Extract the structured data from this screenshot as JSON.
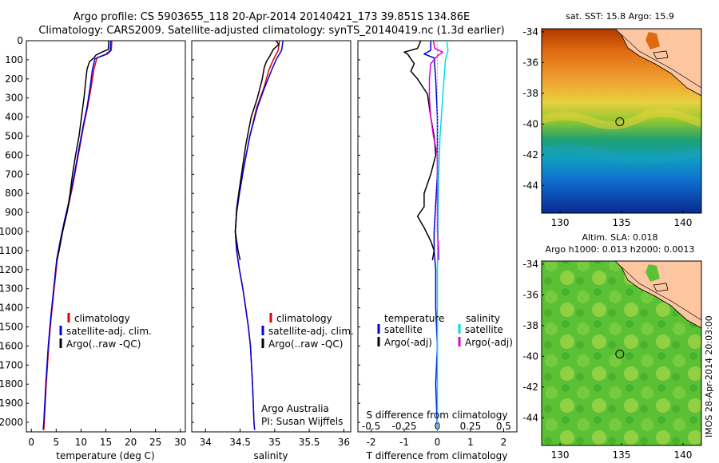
{
  "header": {
    "line1": "Argo profile: CS 5903655_118 20-Apr-2014 20140421_173 39.851S 134.86E",
    "line2": "Climatology: CARS2009. Satellite-adjusted climatology: synTS_20140419.nc (1.3d earlier)"
  },
  "colors": {
    "climatology": "#e00000",
    "satellite": "#0000dd",
    "argo": "#000000",
    "sal_satellite": "#00dddd",
    "sal_argo": "#dd00dd"
  },
  "chart_data": [
    {
      "id": "temperature",
      "type": "line",
      "xlabel": "temperature (deg C)",
      "ylabel": "",
      "xlim": [
        -1,
        31
      ],
      "ylim": [
        0,
        2050
      ],
      "y_inverted": true,
      "xticks": [
        0,
        5,
        10,
        15,
        20,
        25,
        30
      ],
      "yticks": [
        0,
        100,
        200,
        300,
        400,
        500,
        600,
        700,
        800,
        900,
        1000,
        1100,
        1200,
        1300,
        1400,
        1500,
        1600,
        1700,
        1800,
        1900,
        2000
      ],
      "legend": [
        "climatology",
        "satellite-adj. clim.",
        "Argo(..raw -QC)"
      ],
      "legend_position": "lower-middle",
      "series": [
        {
          "name": "climatology",
          "color_key": "climatology",
          "points": [
            [
              16.2,
              0
            ],
            [
              16.1,
              50
            ],
            [
              15.3,
              70
            ],
            [
              13.2,
              90
            ],
            [
              12.6,
              150
            ],
            [
              12.0,
              250
            ],
            [
              11.3,
              350
            ],
            [
              10.5,
              450
            ],
            [
              9.8,
              550
            ],
            [
              9.1,
              650
            ],
            [
              8.4,
              750
            ],
            [
              7.6,
              850
            ],
            [
              6.7,
              950
            ],
            [
              5.9,
              1050
            ],
            [
              5.2,
              1150
            ],
            [
              4.6,
              1300
            ],
            [
              4.0,
              1450
            ],
            [
              3.5,
              1600
            ],
            [
              3.0,
              1800
            ],
            [
              2.6,
              2000
            ],
            [
              2.5,
              2040
            ]
          ]
        },
        {
          "name": "satellite-adj. clim.",
          "color_key": "satellite",
          "points": [
            [
              16.0,
              0
            ],
            [
              15.9,
              50
            ],
            [
              15.1,
              70
            ],
            [
              12.8,
              95
            ],
            [
              12.3,
              150
            ],
            [
              11.8,
              250
            ],
            [
              11.2,
              350
            ],
            [
              10.4,
              450
            ],
            [
              9.7,
              550
            ],
            [
              9.0,
              650
            ],
            [
              8.3,
              750
            ],
            [
              7.5,
              850
            ],
            [
              6.6,
              950
            ],
            [
              5.8,
              1050
            ],
            [
              5.1,
              1150
            ],
            [
              4.5,
              1300
            ],
            [
              3.9,
              1450
            ],
            [
              3.4,
              1600
            ],
            [
              2.9,
              1800
            ],
            [
              2.5,
              2000
            ],
            [
              2.4,
              2040
            ]
          ]
        },
        {
          "name": "Argo(..raw -QC)",
          "color_key": "argo",
          "points": [
            [
              15.6,
              0
            ],
            [
              15.5,
              45
            ],
            [
              14.2,
              60
            ],
            [
              13.0,
              75
            ],
            [
              12.6,
              90
            ],
            [
              11.7,
              110
            ],
            [
              11.2,
              150
            ],
            [
              11.0,
              200
            ],
            [
              10.6,
              300
            ],
            [
              10.1,
              400
            ],
            [
              9.6,
              500
            ],
            [
              8.9,
              600
            ],
            [
              8.3,
              700
            ],
            [
              7.8,
              800
            ],
            [
              7.2,
              900
            ],
            [
              6.3,
              1000
            ],
            [
              5.6,
              1100
            ],
            [
              5.1,
              1150
            ]
          ]
        }
      ]
    },
    {
      "id": "salinity",
      "type": "line",
      "xlabel": "salinity",
      "xlim": [
        33.8,
        36.1
      ],
      "ylim": [
        0,
        2050
      ],
      "y_inverted": true,
      "xticks": [
        34,
        34.5,
        35,
        35.5,
        36
      ],
      "legend": [
        "climatology",
        "satellite-adj. clim.",
        "Argo(..raw -QC)"
      ],
      "legend_position": "lower-middle",
      "annotation": [
        "Argo Australia",
        "PI: Susan Wijffels"
      ],
      "series": [
        {
          "name": "climatology",
          "color_key": "climatology",
          "points": [
            [
              35.07,
              0
            ],
            [
              35.05,
              50
            ],
            [
              34.98,
              100
            ],
            [
              34.92,
              150
            ],
            [
              34.84,
              250
            ],
            [
              34.74,
              350
            ],
            [
              34.64,
              500
            ],
            [
              34.56,
              650
            ],
            [
              34.49,
              800
            ],
            [
              34.45,
              900
            ],
            [
              34.43,
              1000
            ],
            [
              34.45,
              1100
            ],
            [
              34.49,
              1200
            ],
            [
              34.54,
              1300
            ],
            [
              34.58,
              1400
            ],
            [
              34.62,
              1500
            ],
            [
              34.65,
              1600
            ],
            [
              34.68,
              1800
            ],
            [
              34.7,
              2000
            ],
            [
              34.71,
              2040
            ]
          ]
        },
        {
          "name": "satellite-adj. clim.",
          "color_key": "satellite",
          "points": [
            [
              35.12,
              0
            ],
            [
              35.1,
              50
            ],
            [
              35.02,
              100
            ],
            [
              34.96,
              150
            ],
            [
              34.85,
              250
            ],
            [
              34.75,
              350
            ],
            [
              34.64,
              500
            ],
            [
              34.56,
              650
            ],
            [
              34.49,
              800
            ],
            [
              34.45,
              900
            ],
            [
              34.43,
              1000
            ],
            [
              34.45,
              1100
            ],
            [
              34.49,
              1200
            ],
            [
              34.54,
              1300
            ],
            [
              34.58,
              1400
            ],
            [
              34.62,
              1500
            ],
            [
              34.65,
              1600
            ],
            [
              34.68,
              1800
            ],
            [
              34.7,
              2000
            ],
            [
              34.71,
              2040
            ]
          ]
        },
        {
          "name": "Argo(..raw -QC)",
          "color_key": "argo",
          "points": [
            [
              35.02,
              0
            ],
            [
              35.06,
              20
            ],
            [
              34.98,
              45
            ],
            [
              34.93,
              80
            ],
            [
              34.88,
              110
            ],
            [
              34.85,
              140
            ],
            [
              34.82,
              200
            ],
            [
              34.75,
              300
            ],
            [
              34.66,
              400
            ],
            [
              34.58,
              550
            ],
            [
              34.52,
              700
            ],
            [
              34.48,
              800
            ],
            [
              34.45,
              880
            ],
            [
              34.44,
              950
            ],
            [
              34.43,
              1000
            ],
            [
              34.45,
              1050
            ],
            [
              34.47,
              1100
            ],
            [
              34.5,
              1150
            ]
          ]
        }
      ]
    },
    {
      "id": "difference",
      "type": "line",
      "xlabel": "T difference from climatology",
      "x2label": "S difference from climatology",
      "xlim": [
        -2.4,
        2.4
      ],
      "ylim": [
        0,
        2050
      ],
      "y_inverted": true,
      "xticks": [
        -2,
        -1,
        0,
        1,
        2
      ],
      "x2ticks": [
        -0.5,
        -0.25,
        0,
        0.25,
        0.5
      ],
      "x2tick_labels": [
        "-0.5",
        "-0.25",
        "0",
        "0.25",
        "0.5"
      ],
      "legend_left_title": "temperature",
      "legend_right_title": "salinity",
      "legend_left": [
        "satellite",
        "Argo(-adj)"
      ],
      "legend_right": [
        "satellite",
        "Argo(-adj)"
      ],
      "series": [
        {
          "name": "T satellite",
          "color_key": "satellite",
          "points": [
            [
              -0.2,
              0
            ],
            [
              -0.2,
              50
            ],
            [
              -0.4,
              70
            ],
            [
              -0.1,
              90
            ],
            [
              -0.05,
              200
            ],
            [
              0,
              400
            ],
            [
              0,
              700
            ],
            [
              -0.1,
              1000
            ],
            [
              -0.1,
              1100
            ],
            [
              -0.05,
              1200
            ],
            [
              -0.05,
              1400
            ],
            [
              0,
              1600
            ],
            [
              -0.05,
              1800
            ],
            [
              0,
              2040
            ]
          ]
        },
        {
          "name": "T Argo(-adj)",
          "color_key": "argo",
          "points": [
            [
              -0.5,
              0
            ],
            [
              -0.6,
              40
            ],
            [
              -1.0,
              60
            ],
            [
              -0.9,
              70
            ],
            [
              -0.8,
              95
            ],
            [
              -0.7,
              120
            ],
            [
              -0.8,
              160
            ],
            [
              -0.6,
              200
            ],
            [
              -0.3,
              280
            ],
            [
              -0.2,
              400
            ],
            [
              -0.1,
              500
            ],
            [
              -0.05,
              600
            ],
            [
              -0.2,
              700
            ],
            [
              -0.4,
              800
            ],
            [
              -0.4,
              870
            ],
            [
              -0.6,
              920
            ],
            [
              -0.4,
              980
            ],
            [
              -0.2,
              1050
            ],
            [
              -0.1,
              1100
            ],
            [
              -0.15,
              1150
            ]
          ]
        },
        {
          "name": "S satellite",
          "color_key": "sal_satellite",
          "points": [
            [
              0.07,
              0
            ],
            [
              0.08,
              50
            ],
            [
              0.06,
              100
            ],
            [
              0.05,
              200
            ],
            [
              0.04,
              300
            ],
            [
              0.02,
              500
            ],
            [
              0.01,
              700
            ],
            [
              0.005,
              900
            ],
            [
              0.005,
              1000
            ],
            [
              0,
              1200
            ],
            [
              0,
              1500
            ],
            [
              0,
              2040
            ]
          ]
        },
        {
          "name": "S Argo(-adj)",
          "color_key": "sal_argo",
          "points": [
            [
              -0.03,
              0
            ],
            [
              -0.02,
              40
            ],
            [
              0.04,
              60
            ],
            [
              0.0,
              80
            ],
            [
              -0.05,
              120
            ],
            [
              -0.06,
              200
            ],
            [
              -0.06,
              300
            ],
            [
              -0.05,
              400
            ],
            [
              -0.03,
              500
            ],
            [
              0,
              600
            ],
            [
              0,
              800
            ],
            [
              0,
              1000
            ],
            [
              0.01,
              1100
            ],
            [
              0.01,
              1150
            ]
          ]
        }
      ]
    },
    {
      "id": "sst-map",
      "type": "heatmap",
      "title": "sat. SST: 15.8 Argo: 15.9",
      "xticks": [
        130,
        135,
        140
      ],
      "yticks": [
        -34,
        -36,
        -38,
        -40,
        -42,
        -44
      ],
      "xlim": [
        128.5,
        141.5
      ],
      "ylim": [
        -45.8,
        -33.8
      ],
      "marker": {
        "lon": 134.86,
        "lat": -39.851
      }
    },
    {
      "id": "sla-map",
      "type": "heatmap",
      "title_line1": "Altim. SLA: 0.018",
      "title_line2": "Argo h1000: 0.013 h2000: 0.0013",
      "xticks": [
        130,
        135,
        140
      ],
      "yticks": [
        -34,
        -36,
        -38,
        -40,
        -42,
        -44
      ],
      "xlim": [
        128.5,
        141.5
      ],
      "ylim": [
        -45.8,
        -33.8
      ],
      "marker": {
        "lon": 134.86,
        "lat": -39.851
      }
    }
  ],
  "footer": {
    "imos_label": "IMOS 28-Apr-2014 20:03:00"
  }
}
